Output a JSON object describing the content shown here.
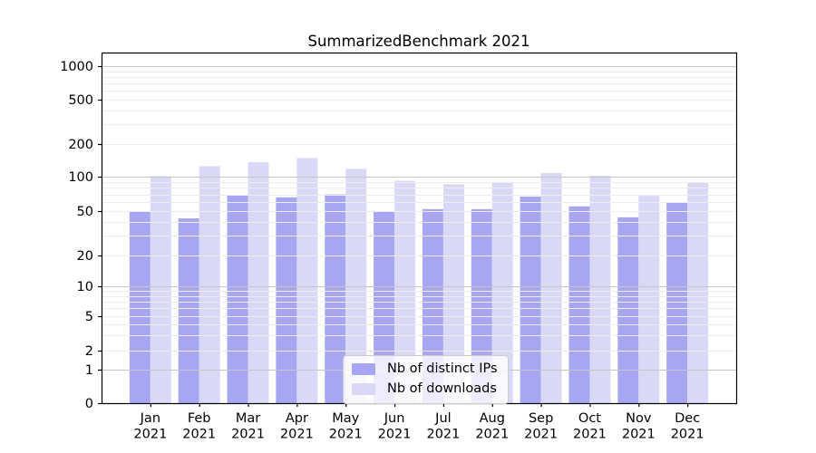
{
  "chart_data": {
    "type": "bar",
    "title": "SummarizedBenchmark 2021",
    "categories": [
      "Jan",
      "Feb",
      "Mar",
      "Apr",
      "May",
      "Jun",
      "Jul",
      "Aug",
      "Sep",
      "Oct",
      "Nov",
      "Dec"
    ],
    "category_year": "2021",
    "series": [
      {
        "name": "Nb of distinct IPs",
        "color": "#a6a6f2",
        "values": [
          50,
          43,
          69,
          66,
          70,
          50,
          52,
          52,
          67,
          55,
          44,
          59
        ]
      },
      {
        "name": "Nb of downloads",
        "color": "#d9d9f7",
        "values": [
          101,
          125,
          136,
          149,
          118,
          92,
          86,
          90,
          108,
          102,
          68,
          88
        ]
      }
    ],
    "y_ticks": [
      0,
      1,
      2,
      5,
      10,
      20,
      50,
      100,
      200,
      500,
      1000
    ],
    "y_scale": "symlog",
    "ylim": [
      0,
      1300
    ],
    "xlabel": "",
    "ylabel": "",
    "grid": true,
    "legend_position": "lower center",
    "colors": {
      "major_gridline": "#c6c6c6",
      "minor_gridline": "#ededed",
      "axis": "#000000",
      "text": "#000000"
    }
  }
}
